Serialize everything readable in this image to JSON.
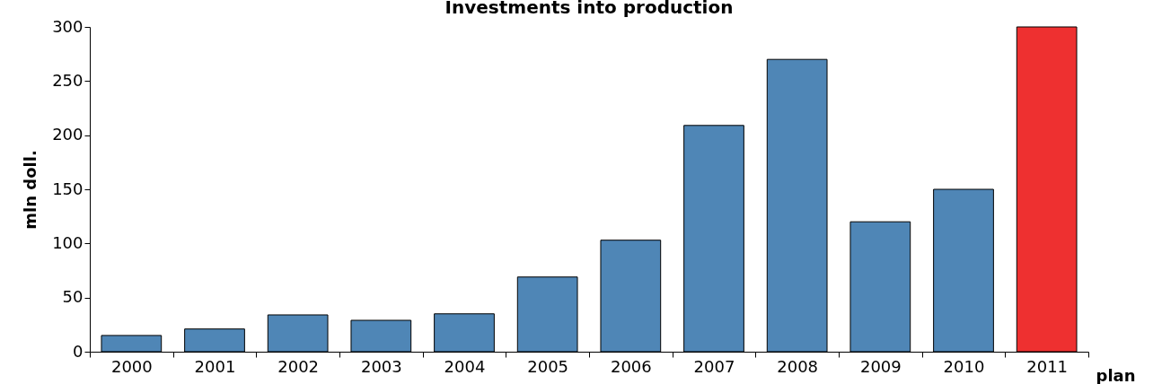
{
  "chart_data": {
    "type": "bar",
    "title": "Investments into production",
    "ylabel": "mln doll.",
    "xlabel": "plan",
    "categories": [
      "2000",
      "2001",
      "2002",
      "2003",
      "2004",
      "2005",
      "2006",
      "2007",
      "2008",
      "2009",
      "2010",
      "2011"
    ],
    "values": [
      15,
      21,
      34,
      29,
      35,
      69,
      103,
      209,
      270,
      120,
      150,
      300
    ],
    "colors": [
      "#4f86b6",
      "#4f86b6",
      "#4f86b6",
      "#4f86b6",
      "#4f86b6",
      "#4f86b6",
      "#4f86b6",
      "#4f86b6",
      "#4f86b6",
      "#4f86b6",
      "#4f86b6",
      "#ee3030"
    ],
    "ylim": [
      0,
      300
    ],
    "yticks": [
      0,
      50,
      100,
      150,
      200,
      250,
      300
    ],
    "grid": false
  }
}
